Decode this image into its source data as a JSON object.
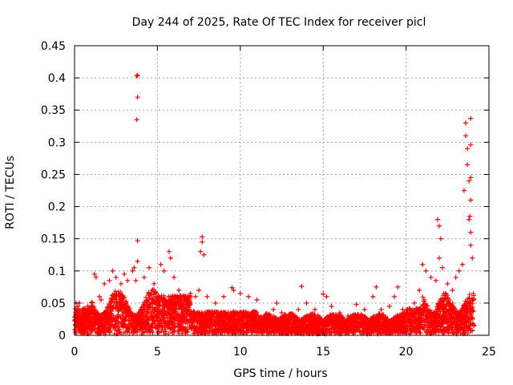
{
  "chart_data": {
    "type": "scatter",
    "title": "Day 244 of 2025, Rate Of TEC Index for receiver picl",
    "xlabel": "GPS time / hours",
    "ylabel": "ROTI / TECUs",
    "xlim": [
      0,
      25
    ],
    "ylim": [
      0,
      0.45
    ],
    "xticks": [
      0,
      5,
      10,
      15,
      20,
      25
    ],
    "yticks": [
      0,
      0.05,
      0.1,
      0.15,
      0.2,
      0.25,
      0.3,
      0.35,
      0.4,
      0.45
    ],
    "xtick_labels": [
      "0",
      "5",
      "10",
      "15",
      "20",
      "25"
    ],
    "ytick_labels": [
      "0",
      "0.05",
      "0.1",
      "0.15",
      "0.2",
      "0.25",
      "0.3",
      "0.35",
      "0.4",
      "0.45"
    ],
    "grid": true,
    "marker": "+",
    "color": "#ff0000",
    "series": [
      {
        "name": "ROTI",
        "points": [
          [
            0.1,
            0.05
          ],
          [
            0.2,
            0.045
          ],
          [
            0.3,
            0.05
          ],
          [
            0.5,
            0.04
          ],
          [
            0.8,
            0.045
          ],
          [
            1.2,
            0.095
          ],
          [
            1.3,
            0.09
          ],
          [
            1.5,
            0.06
          ],
          [
            1.6,
            0.055
          ],
          [
            1.8,
            0.08
          ],
          [
            2.1,
            0.085
          ],
          [
            2.3,
            0.1
          ],
          [
            2.5,
            0.09
          ],
          [
            2.8,
            0.08
          ],
          [
            3.0,
            0.095
          ],
          [
            3.2,
            0.085
          ],
          [
            3.5,
            0.1
          ],
          [
            3.6,
            0.105
          ],
          [
            3.7,
            0.085
          ],
          [
            3.8,
            0.115
          ],
          [
            3.75,
            0.403
          ],
          [
            3.8,
            0.404
          ],
          [
            3.8,
            0.37
          ],
          [
            3.75,
            0.335
          ],
          [
            3.8,
            0.147
          ],
          [
            4.2,
            0.09
          ],
          [
            4.5,
            0.105
          ],
          [
            4.8,
            0.08
          ],
          [
            5.2,
            0.11
          ],
          [
            5.4,
            0.1
          ],
          [
            5.7,
            0.13
          ],
          [
            5.8,
            0.12
          ],
          [
            6.0,
            0.09
          ],
          [
            6.3,
            0.07
          ],
          [
            6.6,
            0.06
          ],
          [
            7.0,
            0.065
          ],
          [
            7.3,
            0.06
          ],
          [
            7.5,
            0.07
          ],
          [
            7.7,
            0.153
          ],
          [
            7.7,
            0.145
          ],
          [
            7.6,
            0.13
          ],
          [
            7.8,
            0.125
          ],
          [
            8.0,
            0.06
          ],
          [
            8.5,
            0.05
          ],
          [
            9.0,
            0.06
          ],
          [
            9.5,
            0.074
          ],
          [
            9.6,
            0.07
          ],
          [
            10.0,
            0.065
          ],
          [
            10.5,
            0.06
          ],
          [
            11.0,
            0.055
          ],
          [
            11.5,
            0.03
          ],
          [
            12.0,
            0.04
          ],
          [
            12.2,
            0.05
          ],
          [
            12.5,
            0.035
          ],
          [
            13.0,
            0.03
          ],
          [
            13.5,
            0.04
          ],
          [
            13.7,
            0.076
          ],
          [
            14.0,
            0.05
          ],
          [
            14.5,
            0.04
          ],
          [
            15.0,
            0.064
          ],
          [
            15.2,
            0.06
          ],
          [
            15.5,
            0.045
          ],
          [
            16.0,
            0.035
          ],
          [
            16.5,
            0.03
          ],
          [
            17.0,
            0.048
          ],
          [
            17.5,
            0.04
          ],
          [
            18.0,
            0.06
          ],
          [
            18.2,
            0.075
          ],
          [
            18.5,
            0.04
          ],
          [
            19.0,
            0.045
          ],
          [
            19.3,
            0.06
          ],
          [
            19.5,
            0.075
          ],
          [
            19.8,
            0.04
          ],
          [
            20.2,
            0.04
          ],
          [
            20.5,
            0.05
          ],
          [
            20.8,
            0.07
          ],
          [
            21.0,
            0.11
          ],
          [
            21.2,
            0.1
          ],
          [
            21.5,
            0.09
          ],
          [
            21.8,
            0.085
          ],
          [
            21.9,
            0.18
          ],
          [
            22.0,
            0.17
          ],
          [
            22.1,
            0.15
          ],
          [
            22.0,
            0.12
          ],
          [
            22.2,
            0.105
          ],
          [
            22.5,
            0.08
          ],
          [
            22.8,
            0.07
          ],
          [
            23.0,
            0.09
          ],
          [
            23.2,
            0.1
          ],
          [
            23.4,
            0.11
          ],
          [
            23.5,
            0.225
          ],
          [
            23.6,
            0.33
          ],
          [
            23.6,
            0.31
          ],
          [
            23.7,
            0.29
          ],
          [
            23.7,
            0.265
          ],
          [
            23.8,
            0.24
          ],
          [
            23.8,
            0.18
          ],
          [
            23.9,
            0.337
          ],
          [
            23.9,
            0.296
          ],
          [
            23.9,
            0.245
          ],
          [
            23.9,
            0.21
          ],
          [
            23.85,
            0.185
          ],
          [
            23.9,
            0.16
          ],
          [
            23.9,
            0.14
          ],
          [
            24.0,
            0.12
          ]
        ]
      }
    ]
  }
}
